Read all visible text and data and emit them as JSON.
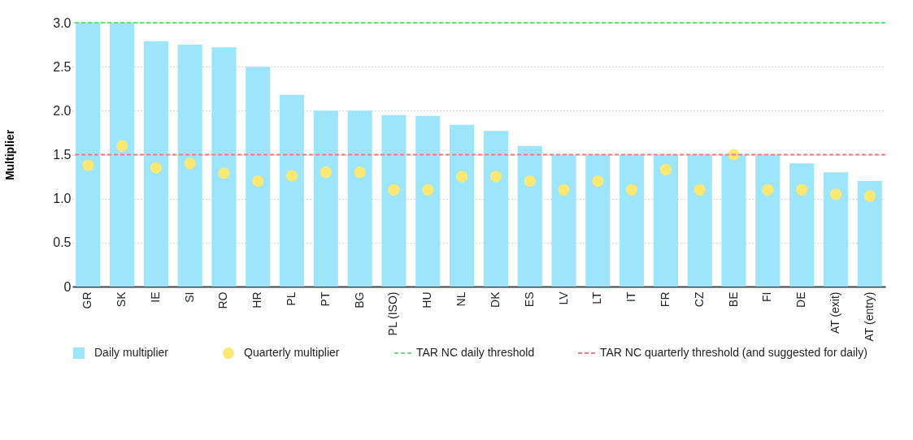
{
  "chart_data": {
    "type": "bar",
    "ylabel": "Multiplier",
    "categories": [
      "GR",
      "SK",
      "IE",
      "SI",
      "RO",
      "HR",
      "PL",
      "PT",
      "BG",
      "PL (ISO)",
      "HU",
      "NL",
      "DK",
      "ES",
      "LV",
      "LT",
      "IT",
      "FR",
      "CZ",
      "BE",
      "FI",
      "DE",
      "AT (exit)",
      "AT (entry)"
    ],
    "series": [
      {
        "name": "Daily multiplier",
        "color": "#9de5fa",
        "values": [
          3.0,
          3.0,
          2.79,
          2.75,
          2.72,
          2.5,
          2.18,
          2.0,
          2.0,
          1.95,
          1.94,
          1.84,
          1.77,
          1.6,
          1.5,
          1.5,
          1.5,
          1.5,
          1.5,
          1.5,
          1.5,
          1.4,
          1.3,
          1.2
        ]
      },
      {
        "name": "Quarterly multiplier",
        "type": "scatter",
        "color": "#fde874",
        "values": [
          1.38,
          1.6,
          1.35,
          1.4,
          1.29,
          1.2,
          1.26,
          1.3,
          1.3,
          1.1,
          1.1,
          1.25,
          1.25,
          1.2,
          1.1,
          1.2,
          1.1,
          1.33,
          1.1,
          1.5,
          1.1,
          1.1,
          1.05,
          1.03
        ]
      }
    ],
    "ylim": [
      0,
      3
    ],
    "yticks": [
      0,
      0.5,
      {
        "value": 1,
        "label": "1.0"
      },
      1.5,
      {
        "value": 2,
        "label": "2.0"
      },
      2.5,
      {
        "value": 3,
        "label": "3.0"
      }
    ],
    "ref_lines": [
      {
        "axis": "y",
        "value": 3,
        "label": "TAR NC daily threshold",
        "color": "#66e07a",
        "line_style": "dashed"
      },
      {
        "axis": "y",
        "value": 1.5,
        "label": "TAR NC quarterly threshold (and suggested for daily)",
        "color": "#f47c7c",
        "line_style": "dashed"
      }
    ],
    "grid": "y",
    "legend": "bottom",
    "marker": "circle"
  }
}
